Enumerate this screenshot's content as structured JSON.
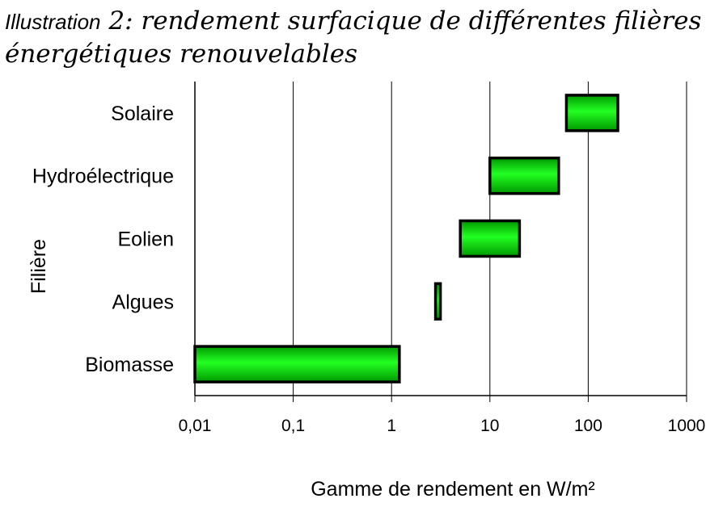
{
  "caption": {
    "lead": "Illustration",
    "rest": " 2: rendement surfacique de différentes filières énergétiques renouvelables"
  },
  "chart_data": {
    "type": "bar",
    "orientation": "horizontal-range",
    "xlabel": "Gamme de rendement en W/m²",
    "ylabel": "Filière",
    "x_scale": "log",
    "xlim": [
      0.01,
      1000
    ],
    "x_ticks": [
      0.01,
      0.1,
      1,
      10,
      100,
      1000
    ],
    "x_tick_labels": [
      "0,01",
      "0,1",
      "1",
      "10",
      "100",
      "1000"
    ],
    "grid": "vertical",
    "bar_color": "#00cc00",
    "categories": [
      "Solaire",
      "Hydroélectrique",
      "Eolien",
      "Algues",
      "Biomasse"
    ],
    "ranges": [
      {
        "low": 60,
        "high": 200
      },
      {
        "low": 10,
        "high": 50
      },
      {
        "low": 5,
        "high": 20
      },
      {
        "low": 2.8,
        "high": 3.1
      },
      {
        "low": 0.01,
        "high": 1.2
      }
    ]
  }
}
